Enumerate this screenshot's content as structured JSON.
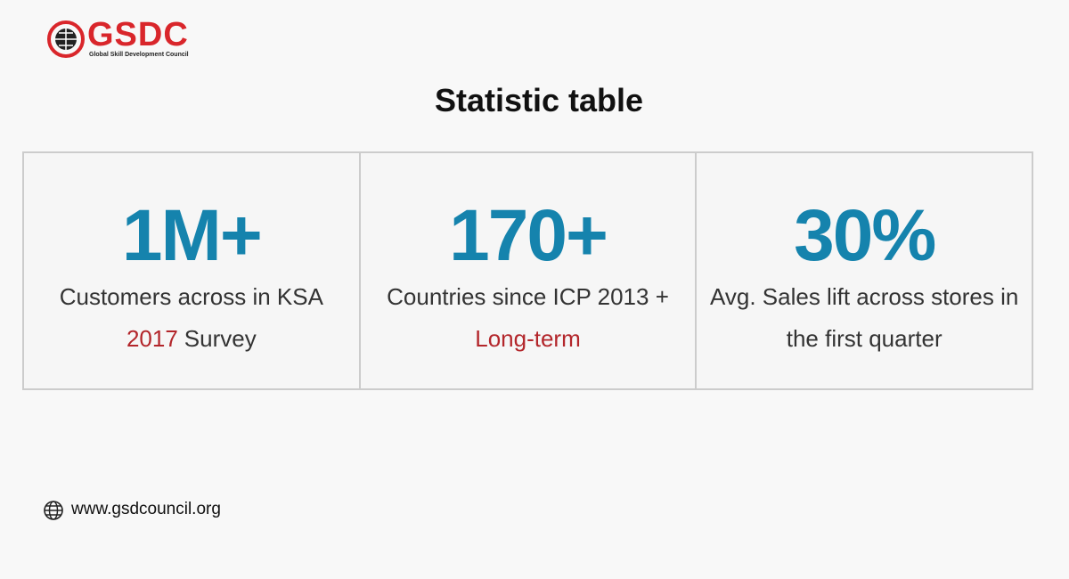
{
  "logo": {
    "name": "GSDC",
    "tagline": "Global Skill Development Council"
  },
  "title": "Statistic table",
  "stats": [
    {
      "value": "1M+",
      "lines": [
        [
          {
            "text": "Customers across in KSA"
          }
        ],
        [
          {
            "text": "2017",
            "accent": true
          },
          {
            "text": "Survey"
          }
        ]
      ]
    },
    {
      "value": "170+",
      "lines": [
        [
          {
            "text": "Countries since ICP 2013 +"
          }
        ],
        [
          {
            "text": "Long-term",
            "accent": true
          }
        ]
      ]
    },
    {
      "value": "30%",
      "lines": [
        [
          {
            "text": "Avg. Sales lift across stores in"
          }
        ],
        [
          {
            "text": "the first quarter"
          }
        ]
      ]
    }
  ],
  "footer": {
    "url": "www.gsdcouncil.org"
  }
}
